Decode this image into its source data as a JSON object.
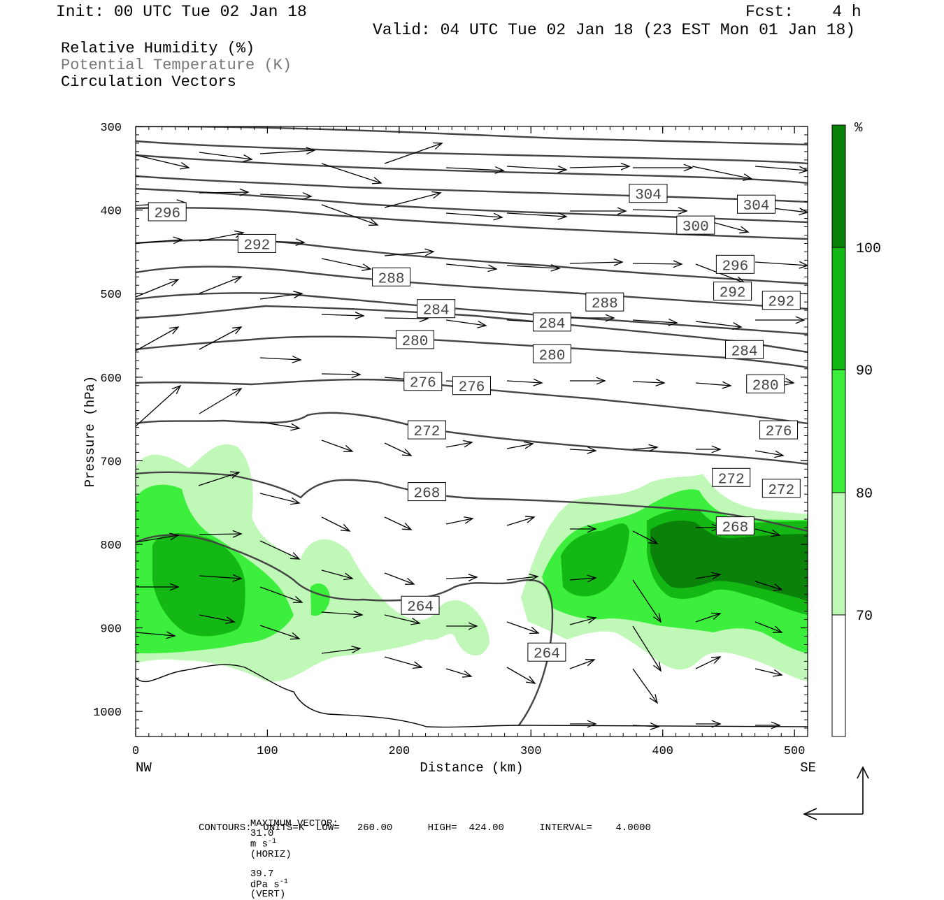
{
  "header": {
    "init": "Init: 00 UTC Tue 02 Jan 18",
    "fcst": "Fcst:    4 h",
    "valid": "Valid: 04 UTC Tue 02 Jan 18 (23 EST Mon 01 Jan 18)"
  },
  "legend": {
    "line1": "Relative Humidity (%)",
    "line2": "Potential Temperature (K)",
    "line3": "Circulation Vectors"
  },
  "footer": {
    "max_vector_label": "MAXIMUM VECTOR:",
    "horiz_value": "31.0",
    "horiz_unit": "m s",
    "horiz_sup": "-1",
    "horiz_tag": "(HORIZ)",
    "vert_value": "39.7",
    "vert_unit": "dPa s",
    "vert_sup": "-1",
    "vert_tag": "(VERT)",
    "contours": "CONTOURS:  UNITS=K  LOW=   260.00      HIGH=  424.00      INTERVAL=    4.0000"
  },
  "colors": {
    "rh_70_80": "#c0f8b8",
    "rh_80_90": "#3cef3c",
    "rh_90_100": "#14b814",
    "rh_100": "#0a820a",
    "contour": "#444444",
    "vector": "#000000"
  },
  "chart_data": {
    "type": "cross-section",
    "xlabel": "Distance (km)",
    "ylabel": "Pressure (hPa)",
    "xlim": [
      0,
      510
    ],
    "ylim": [
      1030,
      300
    ],
    "x_ticks": [
      0,
      100,
      200,
      300,
      400,
      500
    ],
    "y_ticks": [
      300,
      400,
      500,
      600,
      700,
      800,
      900,
      1000
    ],
    "x_left_label": "NW",
    "x_right_label": "SE",
    "colorbar": {
      "unit": "%",
      "levels": [
        70,
        80,
        90,
        100
      ],
      "labels": [
        "70",
        "80",
        "90",
        "100"
      ]
    },
    "theta_labels": [
      {
        "text": "304",
        "x": 389,
        "p": 380
      },
      {
        "text": "304",
        "x": 471,
        "p": 393
      },
      {
        "text": "300",
        "x": 425,
        "p": 418
      },
      {
        "text": "296",
        "x": 24,
        "p": 402
      },
      {
        "text": "296",
        "x": 455,
        "p": 465
      },
      {
        "text": "292",
        "x": 92,
        "p": 440
      },
      {
        "text": "292",
        "x": 453,
        "p": 497
      },
      {
        "text": "292",
        "x": 490,
        "p": 508
      },
      {
        "text": "288",
        "x": 194,
        "p": 480
      },
      {
        "text": "288",
        "x": 356,
        "p": 510
      },
      {
        "text": "284",
        "x": 228,
        "p": 518
      },
      {
        "text": "284",
        "x": 316,
        "p": 534
      },
      {
        "text": "284",
        "x": 462,
        "p": 567
      },
      {
        "text": "280",
        "x": 212,
        "p": 555
      },
      {
        "text": "280",
        "x": 316,
        "p": 572
      },
      {
        "text": "280",
        "x": 478,
        "p": 608
      },
      {
        "text": "276",
        "x": 218,
        "p": 605
      },
      {
        "text": "276",
        "x": 255,
        "p": 610
      },
      {
        "text": "276",
        "x": 488,
        "p": 663
      },
      {
        "text": "272",
        "x": 221,
        "p": 663
      },
      {
        "text": "272",
        "x": 452,
        "p": 720
      },
      {
        "text": "272",
        "x": 490,
        "p": 733
      },
      {
        "text": "268",
        "x": 221,
        "p": 737
      },
      {
        "text": "268",
        "x": 455,
        "p": 778
      },
      {
        "text": "264",
        "x": 216,
        "p": 873
      },
      {
        "text": "264",
        "x": 312,
        "p": 929
      }
    ]
  }
}
